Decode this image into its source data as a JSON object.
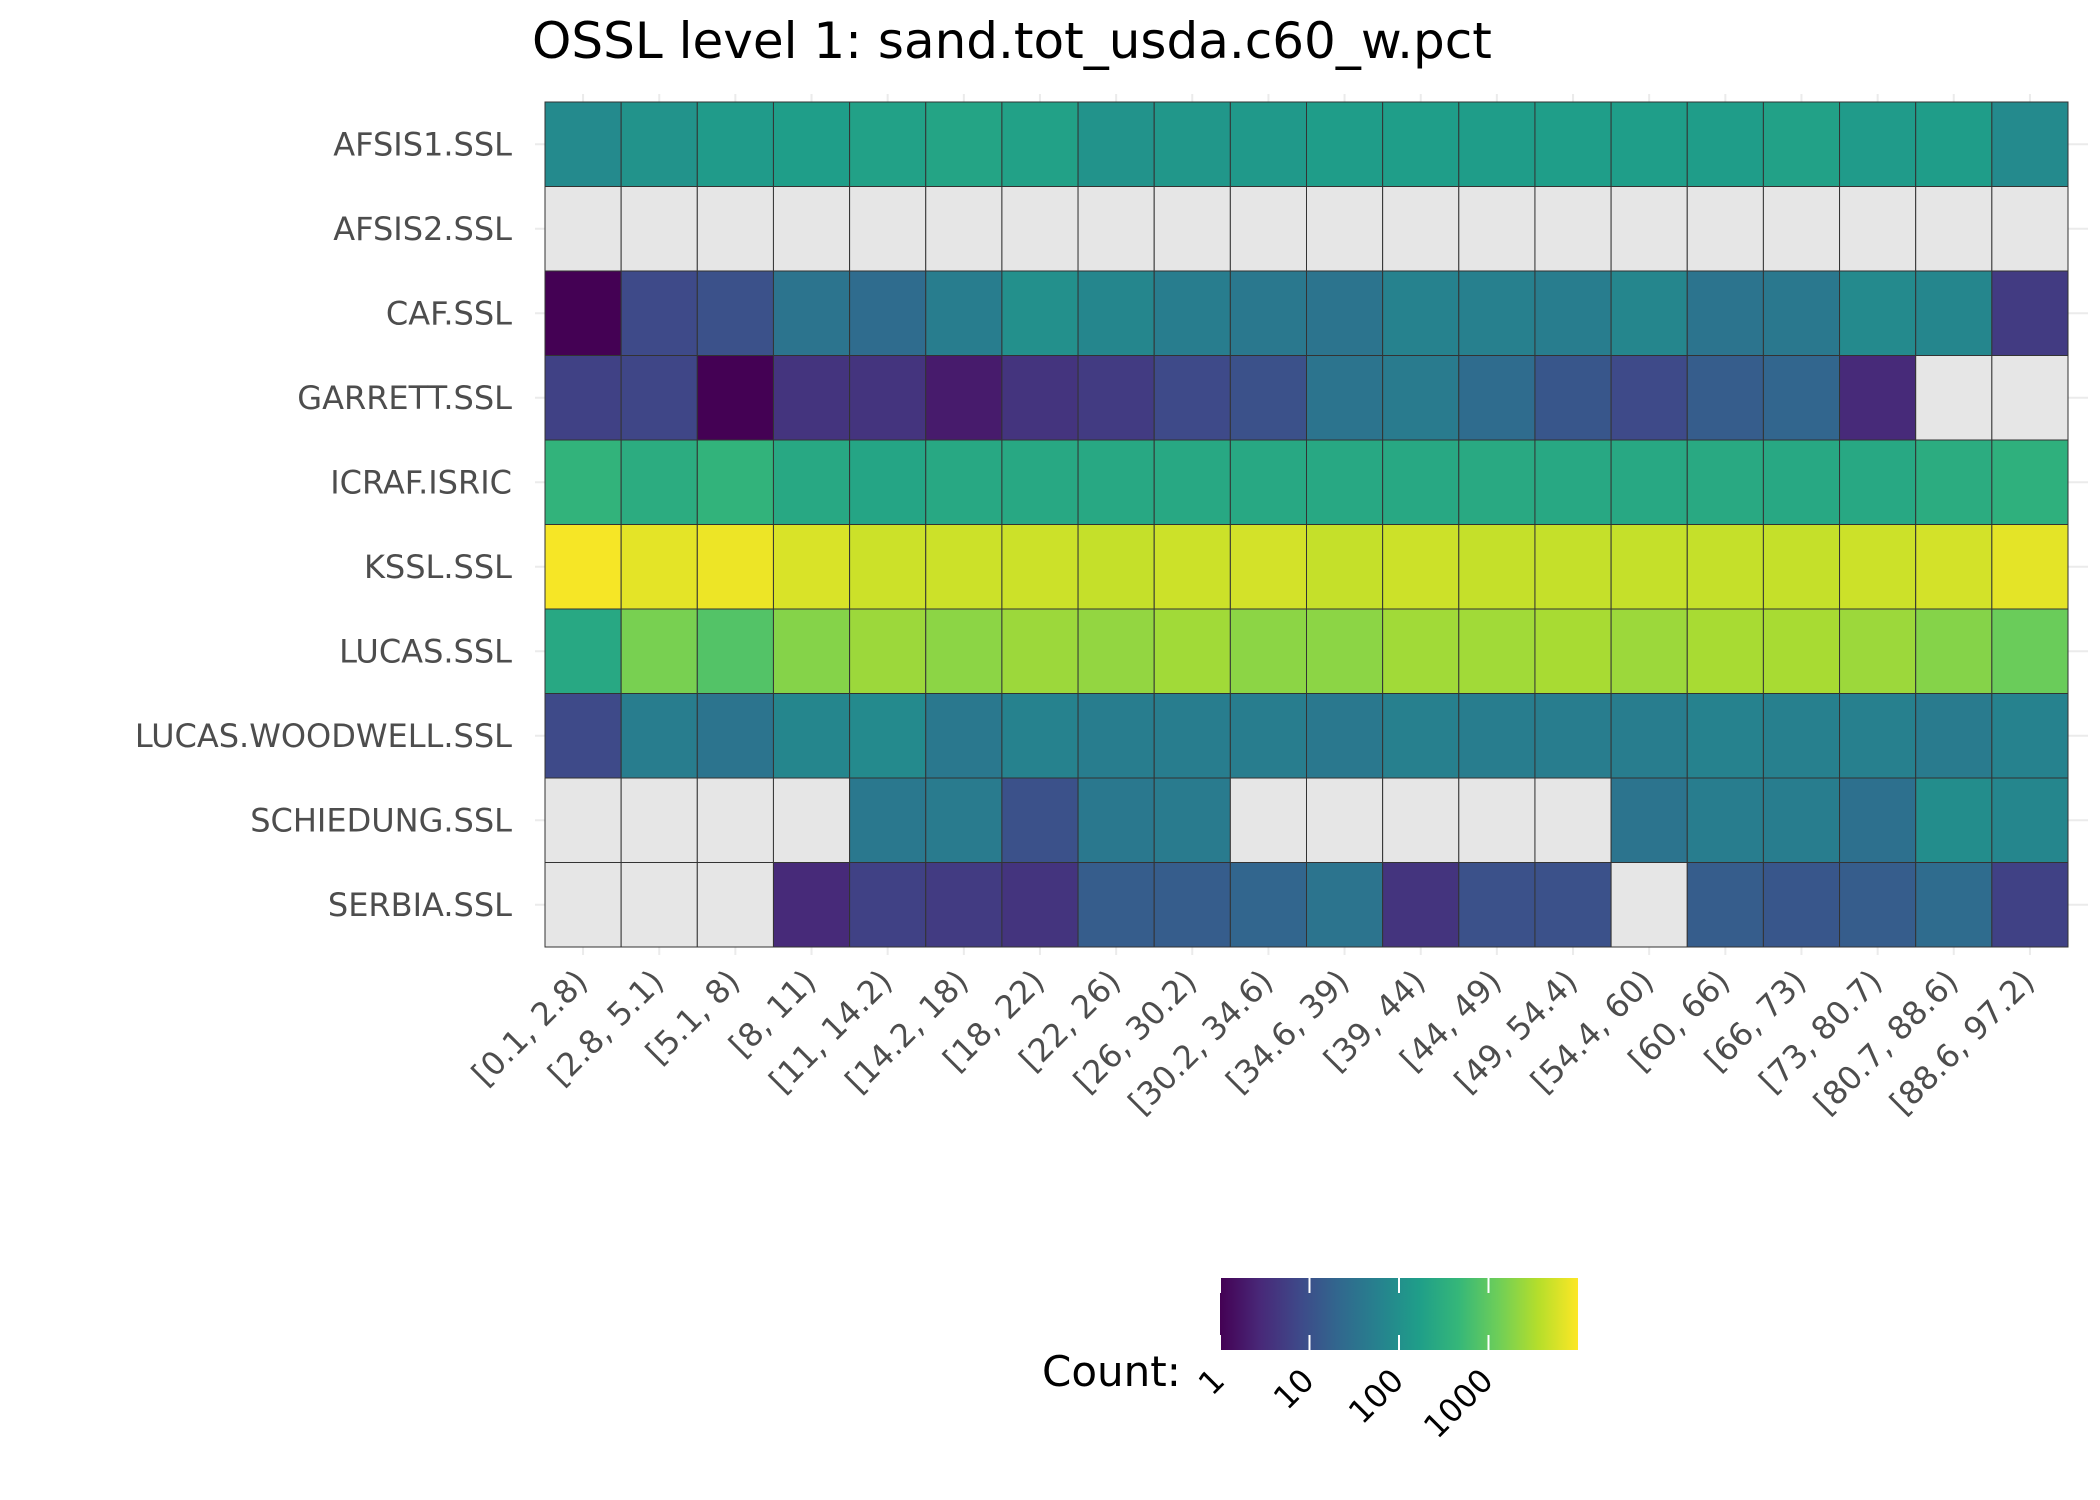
{
  "chart_data": {
    "type": "heatmap",
    "title": "OSSL level 1: sand.tot_usda.c60_w.pct",
    "xlabel": "",
    "ylabel": "",
    "x_categories": [
      "[0.1, 2.8)",
      "[2.8, 5.1)",
      "[5.1, 8)",
      "[8, 11)",
      "[11, 14.2)",
      "[14.2, 18)",
      "[18, 22)",
      "[22, 26)",
      "[26, 30.2)",
      "[30.2, 34.6)",
      "[34.6, 39)",
      "[39, 44)",
      "[44, 49)",
      "[49, 54.4)",
      "[54.4, 60)",
      "[60, 66)",
      "[66, 73)",
      "[73, 80.7)",
      "[80.7, 88.6)",
      "[88.6, 97.2)"
    ],
    "y_categories": [
      "AFSIS1.SSL",
      "AFSIS2.SSL",
      "CAF.SSL",
      "GARRETT.SSL",
      "ICRAF.ISRIC",
      "KSSL.SSL",
      "LUCAS.SSL",
      "LUCAS.WOODWELL.SSL",
      "SCHIEDUNG.SSL",
      "SERBIA.SSL"
    ],
    "values": [
      [
        80,
        110,
        150,
        170,
        190,
        210,
        190,
        110,
        130,
        140,
        160,
        170,
        160,
        170,
        170,
        160,
        190,
        150,
        160,
        80
      ],
      [
        null,
        null,
        null,
        null,
        null,
        null,
        null,
        null,
        null,
        null,
        null,
        null,
        null,
        null,
        null,
        null,
        null,
        null,
        null,
        null
      ],
      [
        1,
        8,
        10,
        35,
        25,
        50,
        100,
        70,
        50,
        40,
        35,
        60,
        55,
        50,
        70,
        35,
        40,
        80,
        70,
        5
      ],
      [
        6,
        7,
        1,
        4,
        4,
        2,
        4,
        5,
        8,
        10,
        35,
        45,
        25,
        12,
        8,
        15,
        20,
        3,
        null,
        null
      ],
      [
        400,
        300,
        400,
        250,
        220,
        250,
        250,
        250,
        250,
        250,
        250,
        250,
        260,
        250,
        250,
        260,
        250,
        250,
        300,
        350
      ],
      [
        9000,
        7000,
        8000,
        6000,
        5000,
        5000,
        5000,
        4500,
        5000,
        5500,
        4500,
        5000,
        4500,
        4500,
        4500,
        4500,
        4500,
        5000,
        5500,
        7000
      ],
      [
        250,
        1500,
        800,
        1800,
        2500,
        2000,
        2500,
        2200,
        2700,
        2000,
        2000,
        2700,
        2700,
        3000,
        2500,
        3000,
        3000,
        2500,
        1800,
        1200
      ],
      [
        8,
        50,
        35,
        70,
        80,
        40,
        60,
        50,
        50,
        50,
        40,
        55,
        50,
        50,
        50,
        60,
        55,
        55,
        45,
        60
      ],
      [
        null,
        null,
        null,
        null,
        40,
        45,
        10,
        40,
        45,
        null,
        null,
        null,
        null,
        null,
        35,
        50,
        50,
        30,
        90,
        70
      ],
      [
        null,
        null,
        null,
        3,
        6,
        5,
        4,
        15,
        15,
        20,
        35,
        4,
        10,
        10,
        null,
        15,
        12,
        15,
        25,
        6
      ]
    ],
    "legend": {
      "title": "Count:",
      "scale": "log10",
      "colormap": "viridis",
      "missing_color": "#e6e6e6",
      "domain": [
        1,
        10000
      ],
      "ticks": [
        1,
        10,
        100,
        1000
      ],
      "tick_labels": [
        "1",
        "10",
        "100",
        "1000"
      ],
      "position": "bottom"
    },
    "grid": true,
    "colors": {
      "viridis": [
        "#440154",
        "#482878",
        "#3e4989",
        "#31688e",
        "#26828e",
        "#1f9e89",
        "#35b779",
        "#6ece58",
        "#b5de2b",
        "#fde725"
      ],
      "gridline": "#ebebeb",
      "cell_border": "#333333",
      "tick_mark": "#333333"
    }
  }
}
